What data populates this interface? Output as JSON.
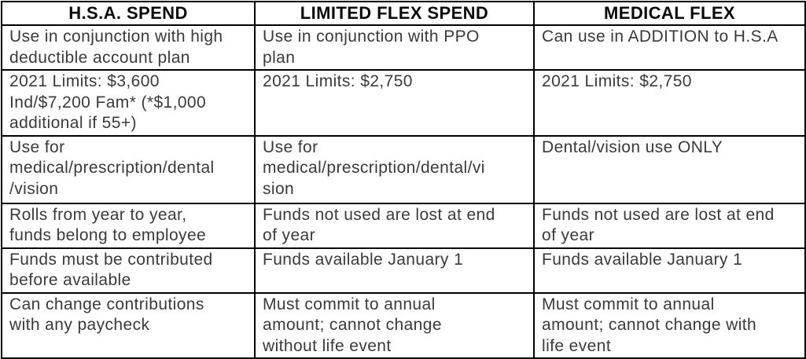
{
  "table": {
    "headers": [
      "H.S.A. SPEND",
      "LIMITED FLEX SPEND",
      "MEDICAL FLEX"
    ],
    "rows": [
      {
        "cells": [
          "Use in conjunction with high\ndeductible account plan",
          "Use in conjunction with PPO\nplan",
          "Can use in ADDITION to H.S.A"
        ]
      },
      {
        "cells": [
          "2021 Limits: $3,600\nInd/$7,200 Fam* (*$1,000\nadditional if 55+)",
          "2021 Limits: $2,750",
          "2021 Limits: $2,750"
        ]
      },
      {
        "cells": [
          "Use for\nmedical/prescription/dental\n/vision",
          "Use for\nmedical/prescription/dental/vi\nsion",
          "Dental/vision use ONLY"
        ]
      },
      {
        "cells": [
          "Rolls from year to year,\nfunds belong to employee",
          "Funds not used are lost at end\nof year",
          "Funds not used are lost at end\nof year"
        ]
      },
      {
        "cells": [
          "Funds must be contributed\nbefore available",
          "Funds available January 1",
          "Funds available January 1"
        ]
      },
      {
        "cells": [
          "Can change contributions\nwith any paycheck",
          "Must commit to annual\namount; cannot change\nwithout life event",
          "Must commit to annual\namount; cannot change with\nlife event"
        ]
      }
    ]
  },
  "colors": {
    "border": "#000000",
    "header_text": "#0a0a0a",
    "body_text": "#3a3a3a",
    "background": "#ffffff"
  }
}
